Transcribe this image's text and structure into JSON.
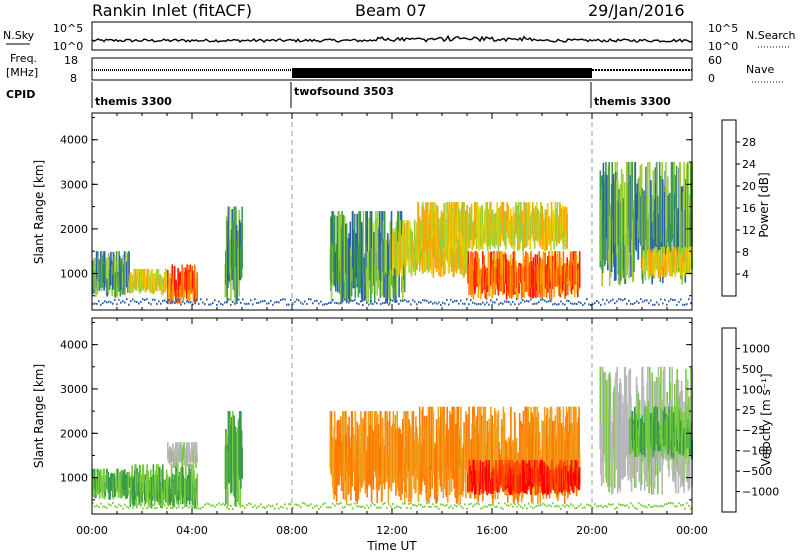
{
  "header": {
    "title": "Rankin Inlet (fitACF)",
    "beam": "Beam 07",
    "date": "29/Jan/2016"
  },
  "top_panels": {
    "nsky_label": "N.Sky",
    "nsky_ticks": [
      "10^5",
      "10^0"
    ],
    "nsearch_ticks": [
      "10^5",
      "10^0"
    ],
    "nsearch_label": "N.Search",
    "freq_label": "Freq.",
    "freq_unit": "[MHz]",
    "freq_ticks": [
      "18",
      "8"
    ],
    "nave_ticks": [
      "60",
      "0"
    ],
    "nave_label": "Nave",
    "cpid_label": "CPID",
    "cpid_segments": [
      {
        "name": "themis 3300",
        "start_h": 0,
        "end_h": 8
      },
      {
        "name": "twofsound 3503",
        "start_h": 8,
        "end_h": 20
      },
      {
        "name": "themis 3300",
        "start_h": 20,
        "end_h": 24
      }
    ]
  },
  "chart_data": [
    {
      "type": "heatmap",
      "name": "power",
      "ylabel": "Slant Range [km]",
      "xlabel": "Time UT",
      "x_ticks": [
        "00:00",
        "04:00",
        "08:00",
        "12:00",
        "16:00",
        "20:00",
        "00:00"
      ],
      "xlim_hours": [
        0,
        24
      ],
      "y_ticks": [
        "1000",
        "2000",
        "3000",
        "4000"
      ],
      "ylim": [
        180,
        4600
      ],
      "colorbar_label": "Power [dB]",
      "colorbar_ticks": [
        "28",
        "24",
        "20",
        "16",
        "12",
        "8",
        "4"
      ],
      "colorbar_colors": [
        "#ff1a00",
        "#ff6a00",
        "#ffa500",
        "#e8d200",
        "#9dcd3a",
        "#3c9a48",
        "#2860b0",
        "#1010ff"
      ],
      "grid_lines_hours": [
        8,
        20
      ],
      "regions": [
        {
          "t0": 0.0,
          "t1": 1.5,
          "r0": 450,
          "r1": 1500,
          "level": "low"
        },
        {
          "t0": 1.5,
          "t1": 3.0,
          "r0": 500,
          "r1": 1100,
          "level": "mid"
        },
        {
          "t0": 3.0,
          "t1": 4.2,
          "r0": 300,
          "r1": 1200,
          "level": "high"
        },
        {
          "t0": 5.3,
          "t1": 6.0,
          "r0": 300,
          "r1": 2500,
          "level": "low"
        },
        {
          "t0": 9.5,
          "t1": 12.5,
          "r0": 300,
          "r1": 2400,
          "level": "low"
        },
        {
          "t0": 12.0,
          "t1": 15.0,
          "r0": 900,
          "r1": 2200,
          "level": "mid"
        },
        {
          "t0": 15.0,
          "t1": 19.5,
          "r0": 400,
          "r1": 1500,
          "level": "high"
        },
        {
          "t0": 13.0,
          "t1": 19.0,
          "r0": 1500,
          "r1": 2600,
          "level": "mid"
        },
        {
          "t0": 20.3,
          "t1": 24.0,
          "r0": 700,
          "r1": 3500,
          "level": "low"
        },
        {
          "t0": 22.0,
          "t1": 24.0,
          "r0": 900,
          "r1": 1600,
          "level": "mid"
        }
      ]
    },
    {
      "type": "heatmap",
      "name": "velocity",
      "ylabel": "Slant Range [km]",
      "xlabel": "Time UT",
      "x_ticks": [
        "00:00",
        "04:00",
        "08:00",
        "12:00",
        "16:00",
        "20:00",
        "00:00"
      ],
      "xlim_hours": [
        0,
        24
      ],
      "y_ticks": [
        "1000",
        "2000",
        "3000",
        "4000"
      ],
      "ylim": [
        180,
        4600
      ],
      "colorbar_label": "Velocity [m s⁻¹]",
      "colorbar_ticks": [
        "1000",
        "500",
        "100",
        "25",
        "−25",
        "−100",
        "−500",
        "−1000"
      ],
      "colorbar_colors": [
        "#1838c0",
        "#3c78c0",
        "#3a9a48",
        "#76cc3a",
        "#b8b8b8",
        "#f0a020",
        "#ff7a00",
        "#ff4a00",
        "#ff0000"
      ],
      "grid_lines_hours": [
        8,
        20
      ],
      "regions": [
        {
          "t0": 0.0,
          "t1": 1.5,
          "r0": 500,
          "r1": 1200,
          "level": "green"
        },
        {
          "t0": 1.5,
          "t1": 4.2,
          "r0": 300,
          "r1": 1300,
          "level": "green"
        },
        {
          "t0": 3.0,
          "t1": 4.2,
          "r0": 1200,
          "r1": 1800,
          "level": "grey"
        },
        {
          "t0": 5.3,
          "t1": 6.0,
          "r0": 300,
          "r1": 2500,
          "level": "green"
        },
        {
          "t0": 9.5,
          "t1": 13.0,
          "r0": 400,
          "r1": 2500,
          "level": "orange"
        },
        {
          "t0": 13.0,
          "t1": 19.5,
          "r0": 400,
          "r1": 2600,
          "level": "orange"
        },
        {
          "t0": 15.0,
          "t1": 19.5,
          "r0": 600,
          "r1": 1400,
          "level": "red"
        },
        {
          "t0": 20.3,
          "t1": 24.0,
          "r0": 600,
          "r1": 3500,
          "level": "grey"
        },
        {
          "t0": 21.5,
          "t1": 24.0,
          "r0": 1400,
          "r1": 2600,
          "level": "green"
        }
      ]
    }
  ]
}
